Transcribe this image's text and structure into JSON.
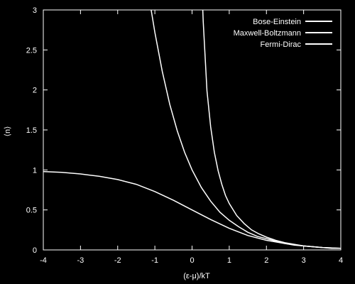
{
  "chart_data": {
    "type": "line",
    "title": "",
    "xlabel": "(ε-μ)/kT",
    "ylabel": "⟨n⟩",
    "xlim": [
      -4,
      4
    ],
    "ylim": [
      0,
      3
    ],
    "x_ticks": [
      -4,
      -3,
      -2,
      -1,
      0,
      1,
      2,
      3,
      4
    ],
    "y_ticks": [
      0,
      0.5,
      1,
      1.5,
      2,
      2.5,
      3
    ],
    "x_tick_labels": [
      "-4",
      "-3",
      "-2",
      "-1",
      "0",
      "1",
      "2",
      "3",
      "4"
    ],
    "y_tick_labels": [
      "0",
      "0.5",
      "1",
      "1.5",
      "2",
      "2.5",
      "3"
    ],
    "grid": false,
    "legend_position": "top-right",
    "colors": {
      "background": "#000000",
      "foreground": "#ffffff"
    },
    "series": [
      {
        "name": "Bose-Einstein",
        "x": [
          0.288,
          0.3,
          0.4,
          0.5,
          0.6,
          0.7,
          0.8,
          0.9,
          1.0,
          1.2,
          1.4,
          1.6,
          1.8,
          2.0,
          2.25,
          2.5,
          2.75,
          3.0,
          3.25,
          3.5,
          3.75,
          4.0
        ],
        "y": [
          3.0,
          2.86,
          1.99,
          1.54,
          1.22,
          0.99,
          0.82,
          0.68,
          0.58,
          0.43,
          0.33,
          0.25,
          0.2,
          0.16,
          0.12,
          0.09,
          0.07,
          0.05,
          0.04,
          0.03,
          0.02,
          0.02
        ]
      },
      {
        "name": "Maxwell-Boltzmann",
        "x": [
          -1.1,
          -1.0,
          -0.8,
          -0.6,
          -0.4,
          -0.2,
          0.0,
          0.25,
          0.5,
          0.75,
          1.0,
          1.25,
          1.5,
          1.75,
          2.0,
          2.25,
          2.5,
          2.75,
          3.0,
          3.5,
          4.0
        ],
        "y": [
          3.0,
          2.72,
          2.23,
          1.82,
          1.49,
          1.22,
          1.0,
          0.78,
          0.61,
          0.47,
          0.37,
          0.29,
          0.22,
          0.17,
          0.14,
          0.11,
          0.08,
          0.06,
          0.05,
          0.03,
          0.02
        ]
      },
      {
        "name": "Fermi-Dirac",
        "x": [
          -4.0,
          -3.5,
          -3.0,
          -2.5,
          -2.0,
          -1.5,
          -1.0,
          -0.5,
          0.0,
          0.5,
          1.0,
          1.5,
          2.0,
          2.5,
          3.0,
          3.5,
          4.0
        ],
        "y": [
          0.98,
          0.97,
          0.95,
          0.92,
          0.88,
          0.82,
          0.73,
          0.62,
          0.5,
          0.38,
          0.27,
          0.18,
          0.12,
          0.08,
          0.05,
          0.03,
          0.02
        ]
      }
    ]
  }
}
